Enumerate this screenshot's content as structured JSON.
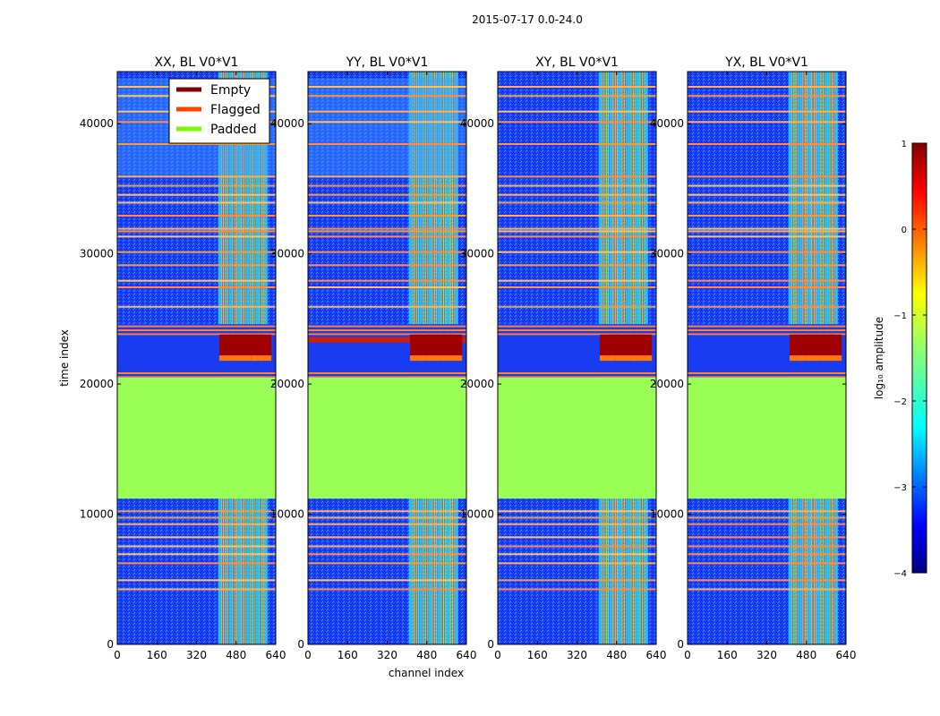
{
  "figure_title": "2015-07-17 0.0-24.0",
  "chart_data": {
    "type": "heatmap",
    "title": "2015-07-17 0.0-24.0",
    "xlabel": "channel index",
    "ylabel": "time index",
    "xlim": [
      0,
      640
    ],
    "ylim": [
      0,
      44000
    ],
    "xticks": [
      0,
      160,
      320,
      480,
      640
    ],
    "yticks": [
      0,
      10000,
      20000,
      30000,
      40000
    ],
    "panels": [
      {
        "title": "XX, BL V0*V1",
        "pol": "XX"
      },
      {
        "title": "YY, BL V0*V1",
        "pol": "YY"
      },
      {
        "title": "XY, BL V0*V1",
        "pol": "XY"
      },
      {
        "title": "YX, BL V0*V1",
        "pol": "YX"
      }
    ],
    "padded_time_range": [
      11200,
      20500
    ],
    "active_channel_range": [
      408,
      600
    ],
    "legend": {
      "location": "top-right of first panel",
      "entries": [
        {
          "label": "Empty",
          "color": "#800000"
        },
        {
          "label": "Flagged",
          "color": "#ff4500"
        },
        {
          "label": "Padded",
          "color": "#7cfc00"
        }
      ]
    },
    "colorbar": {
      "label": "log₁₀ amplitude",
      "range": [
        -4,
        1
      ],
      "ticks": [
        -4,
        -3,
        -2,
        -1,
        0,
        1
      ],
      "colormap": "jet",
      "padded_color": "#99ff55"
    }
  }
}
